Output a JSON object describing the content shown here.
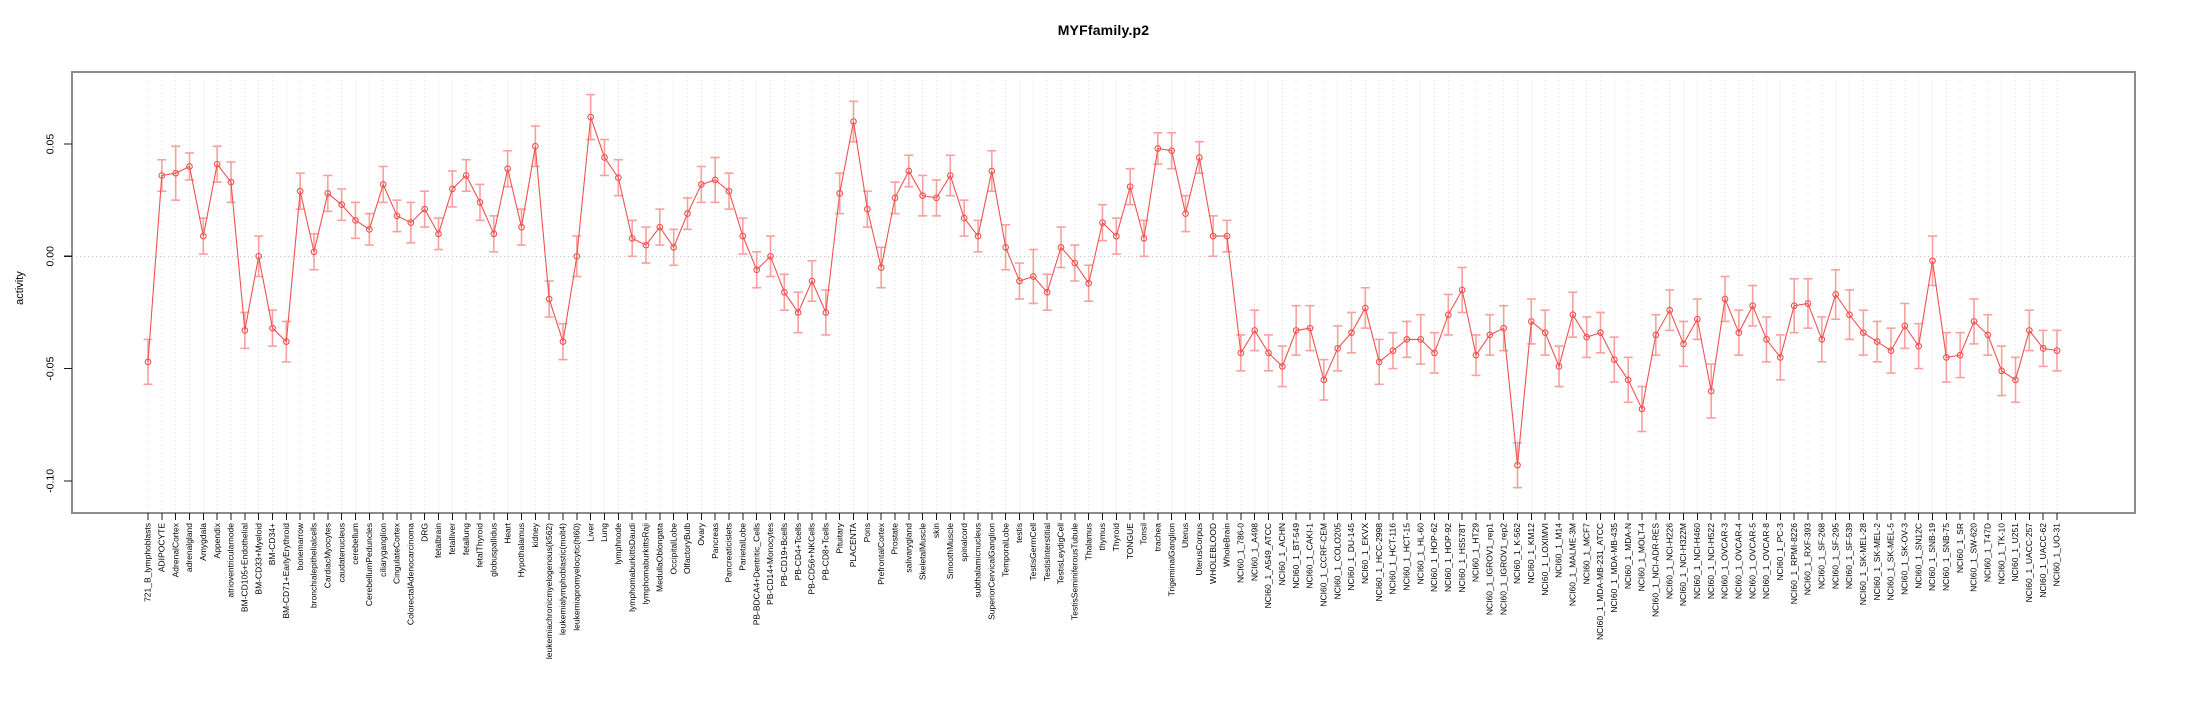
{
  "chart_data": {
    "type": "line",
    "title": "MYFfamily.p2",
    "ylabel": "activity",
    "xlabel": "",
    "ylim": [
      -0.114,
      0.082
    ],
    "yticks": [
      0.05,
      0.0,
      -0.05,
      -0.1
    ],
    "ytick_labels": [
      "0.05",
      "0.00",
      "-0.05",
      "-0.10"
    ],
    "grid": "vertical dashed gridline at every category; dotted horizontal line at y=0",
    "legend_position": "none",
    "marker": "open-circle",
    "colors": {
      "series": "#ef5350",
      "error_bar": "#f8a09d",
      "gridline": "#dcdcdc",
      "zero_line": "#c4c4c4",
      "box": "#8c8c8c",
      "text": "#000000"
    },
    "series": [
      {
        "name": "activity",
        "categories": [
          "721_B_lymphoblasts",
          "ADIPOCYTE",
          "AdrenalCortex",
          "adrenalgland",
          "Amygdala",
          "Appendix",
          "atrioventricularnode",
          "BM-CD105+Endothelial",
          "BM-CD33+Myeloid",
          "BM-CD34+",
          "BM-CD71+EarlyErythroid",
          "bonemarrow",
          "bronchialepithelialcells",
          "CardiacMyocytes",
          "caudatenucleus",
          "cerebellum",
          "CerebellumPeduncles",
          "ciliaryganglion",
          "CingulateCortex",
          "ColorectalAdenocarcinoma",
          "DRG",
          "fetalbrain",
          "fetalliver",
          "fetallung",
          "fetalThyroid",
          "globuspallidus",
          "Heart",
          "Hypothalamus",
          "kidney",
          "leukemiachronicmyelogenous(k562)",
          "leukemialymphoblastic(molt4)",
          "leukemiapromyelocytic(hl60)",
          "Liver",
          "Lung",
          "lymphnode",
          "lymphomaburkittsDaudi",
          "lymphomaburkittsRaji",
          "MedullaOblongata",
          "OccipitalLobe",
          "OlfactoryBulb",
          "Ovary",
          "Pancreas",
          "Pancreaticislets",
          "ParietalLobe",
          "PB-BDCA4+Dentritic_Cells",
          "PB-CD14+Monocytes",
          "PB-CD19+Bcells",
          "PB-CD4+Tcells",
          "PB-CD56+NKCells",
          "PB-CD8+Tcells",
          "Pituitary",
          "PLACENTA",
          "Pons",
          "PrefrontalCortex",
          "Prostate",
          "salivarygland",
          "SkeletalMuscle",
          "skin",
          "SmoothMuscle",
          "spinalcord",
          "subthalamicnucleus",
          "SuperiorCervicalGanglion",
          "TemporalLobe",
          "testis",
          "TestisGermCell",
          "TestisInterstitial",
          "TestisLeydigCell",
          "TestisSeminiferousTubule",
          "Thalamus",
          "thymus",
          "Thyroid",
          "TONGUE",
          "Tonsil",
          "trachea",
          "TrigeminalGanglion",
          "Uterus",
          "UterusCorpus",
          "WHOLEBLOOD",
          "WholeBrain",
          "NCI60_1_786-0",
          "NCI60_1_A498",
          "NCI60_1_A549_ATCC",
          "NCI60_1_ACHN",
          "NCI60_1_BT-549",
          "NCI60_1_CAKI-1",
          "NCI60_1_CCRF-CEM",
          "NCI60_1_COLO205",
          "NCI60_1_DU-145",
          "NCI60_1_EKVX",
          "NCI60_1_HCC-2998",
          "NCI60_1_HCT-116",
          "NCI60_1_HCT-15",
          "NCI60_1_HL-60",
          "NCI60_1_HOP-62",
          "NCI60_1_HOP-92",
          "NCI60_1_HS578T",
          "NCI60_1_HT29",
          "NCI60_1_IGROV1_rep1",
          "NCI60_1_IGROV1_rep2",
          "NCI60_1_K-562",
          "NCI60_1_KM12",
          "NCI60_1_LOXIMVI",
          "NCI60_1_M14",
          "NCI60_1_MALME-3M",
          "NCI60_1_MCF7",
          "NCI60_1_MDA-MB-231_ATCC",
          "NCI60_1_MDA-MB-435",
          "NCI60_1_MDA-N",
          "NCI60_1_MOLT-4",
          "NCI60_1_NCI-ADR-RES",
          "NCI60_1_NCI-H226",
          "NCI60_1_NCI-H322M",
          "NCI60_1_NCI-H460",
          "NCI60_1_NCI-H522",
          "NCI60_1_OVCAR-3",
          "NCI60_1_OVCAR-4",
          "NCI60_1_OVCAR-5",
          "NCI60_1_OVCAR-8",
          "NCI60_1_PC-3",
          "NCI60_1_RPMI-8226",
          "NCI60_1_RXF-393",
          "NCI60_1_SF-268",
          "NCI60_1_SF-295",
          "NCI60_1_SF-539",
          "NCI60_1_SK-MEL-28",
          "NCI60_1_SK-MEL-2",
          "NCI60_1_SK-MEL-5",
          "NCI60_1_SK-OV-3",
          "NCI60_1_SN12C",
          "NCI60_1_SNB-19",
          "NCI60_1_SNB-75",
          "NCI60_1_SR",
          "NCI60_1_SW-620",
          "NCI60_1_T47D",
          "NCI60_1_TK-10",
          "NCI60_1_U251",
          "NCI60_1_UACC-257",
          "NCI60_1_UACC-62",
          "NCI60_1_UO-31"
        ],
        "values": [
          -0.047,
          0.036,
          0.037,
          0.04,
          0.009,
          0.041,
          0.033,
          -0.033,
          0.0,
          -0.032,
          -0.038,
          0.029,
          0.002,
          0.028,
          0.023,
          0.016,
          0.012,
          0.032,
          0.018,
          0.015,
          0.021,
          0.01,
          0.03,
          0.036,
          0.024,
          0.01,
          0.039,
          0.013,
          0.049,
          -0.019,
          -0.038,
          0.0,
          0.062,
          0.044,
          0.035,
          0.008,
          0.005,
          0.013,
          0.004,
          0.019,
          0.032,
          0.034,
          0.029,
          0.009,
          -0.006,
          0.0,
          -0.016,
          -0.025,
          -0.011,
          -0.025,
          0.028,
          0.06,
          0.021,
          -0.005,
          0.026,
          0.038,
          0.027,
          0.026,
          0.036,
          0.017,
          0.009,
          0.038,
          0.004,
          -0.011,
          -0.009,
          -0.016,
          0.004,
          -0.003,
          -0.012,
          0.015,
          0.009,
          0.031,
          0.008,
          0.048,
          0.047,
          0.019,
          0.044,
          0.009,
          0.009,
          -0.043,
          -0.033,
          -0.043,
          -0.049,
          -0.033,
          -0.032,
          -0.055,
          -0.041,
          -0.034,
          -0.023,
          -0.047,
          -0.042,
          -0.037,
          -0.037,
          -0.043,
          -0.026,
          -0.015,
          -0.044,
          -0.035,
          -0.032,
          -0.093,
          -0.029,
          -0.034,
          -0.049,
          -0.026,
          -0.036,
          -0.034,
          -0.046,
          -0.055,
          -0.068,
          -0.035,
          -0.024,
          -0.039,
          -0.028,
          -0.06,
          -0.019,
          -0.034,
          -0.022,
          -0.037,
          -0.045,
          -0.022,
          -0.021,
          -0.037,
          -0.017,
          -0.026,
          -0.034,
          -0.038,
          -0.042,
          -0.031,
          -0.04,
          -0.002,
          -0.045,
          -0.044,
          -0.029,
          -0.035,
          -0.051,
          -0.055,
          -0.033,
          -0.041,
          -0.042
        ],
        "error_half_width": [
          0.01,
          0.007,
          0.012,
          0.006,
          0.008,
          0.008,
          0.009,
          0.008,
          0.009,
          0.008,
          0.009,
          0.008,
          0.008,
          0.008,
          0.007,
          0.008,
          0.007,
          0.008,
          0.007,
          0.009,
          0.008,
          0.007,
          0.008,
          0.007,
          0.008,
          0.008,
          0.008,
          0.008,
          0.009,
          0.008,
          0.008,
          0.009,
          0.01,
          0.008,
          0.008,
          0.008,
          0.008,
          0.008,
          0.008,
          0.007,
          0.008,
          0.01,
          0.008,
          0.008,
          0.008,
          0.009,
          0.008,
          0.009,
          0.009,
          0.01,
          0.009,
          0.009,
          0.008,
          0.009,
          0.007,
          0.007,
          0.009,
          0.008,
          0.009,
          0.008,
          0.007,
          0.009,
          0.01,
          0.008,
          0.012,
          0.008,
          0.009,
          0.008,
          0.008,
          0.008,
          0.008,
          0.008,
          0.008,
          0.007,
          0.008,
          0.008,
          0.007,
          0.009,
          0.007,
          0.008,
          0.009,
          0.008,
          0.009,
          0.011,
          0.01,
          0.009,
          0.01,
          0.009,
          0.009,
          0.01,
          0.008,
          0.008,
          0.011,
          0.009,
          0.009,
          0.01,
          0.009,
          0.009,
          0.01,
          0.01,
          0.01,
          0.01,
          0.009,
          0.01,
          0.009,
          0.009,
          0.01,
          0.01,
          0.01,
          0.009,
          0.009,
          0.01,
          0.009,
          0.012,
          0.01,
          0.01,
          0.009,
          0.01,
          0.01,
          0.012,
          0.011,
          0.01,
          0.011,
          0.011,
          0.01,
          0.009,
          0.01,
          0.01,
          0.01,
          0.011,
          0.011,
          0.01,
          0.01,
          0.009,
          0.011,
          0.01,
          0.009,
          0.008,
          0.009
        ]
      }
    ]
  }
}
